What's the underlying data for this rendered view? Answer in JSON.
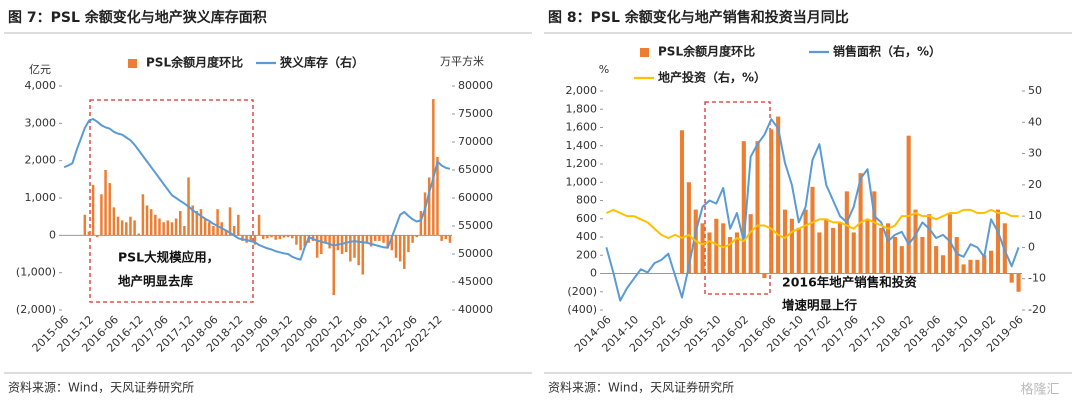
{
  "chart_data": [
    {
      "type": "combo",
      "title": "图 7：PSL 余额变化与地产狭义库存面积",
      "source": "资料来源：Wind，天风证券研究所",
      "ylabel": "亿元",
      "y2label": "万平方米",
      "annotations": [
        "PSL大规模应用，",
        "地产明显去库"
      ],
      "categories": [
        "2015-06",
        null,
        null,
        null,
        null,
        null,
        "2015-12",
        null,
        null,
        null,
        null,
        null,
        "2016-06",
        null,
        null,
        null,
        null,
        null,
        "2016-12",
        null,
        null,
        null,
        null,
        null,
        "2017-06",
        null,
        null,
        null,
        null,
        null,
        "2017-12",
        null,
        null,
        null,
        null,
        null,
        "2018-06",
        null,
        null,
        null,
        null,
        null,
        "2018-12",
        null,
        null,
        null,
        null,
        null,
        "2019-06",
        null,
        null,
        null,
        null,
        null,
        "2019-12",
        null,
        null,
        null,
        null,
        null,
        "2020-06",
        null,
        null,
        null,
        null,
        null,
        "2020-12",
        null,
        null,
        null,
        null,
        null,
        "2021-06",
        null,
        null,
        null,
        null,
        null,
        "2021-12",
        null,
        null,
        null,
        null,
        null,
        "2022-06",
        null,
        null,
        null,
        null,
        null,
        "2022-12",
        null,
        null,
        null
      ],
      "ylim": [
        -2000,
        4000
      ],
      "yticks": [
        {
          "value": -2000,
          "label": "(2,000)"
        },
        {
          "value": -1000,
          "label": "(1,000)"
        },
        0,
        {
          "value": 1000,
          "label": "1,000"
        },
        {
          "value": 2000,
          "label": "2,000"
        },
        {
          "value": 3000,
          "label": "3,000"
        },
        {
          "value": 4000,
          "label": "4,000"
        }
      ],
      "y2lim": [
        40000,
        80000
      ],
      "y2ticks": [
        40000,
        45000,
        50000,
        55000,
        60000,
        65000,
        70000,
        75000,
        80000
      ],
      "series": [
        {
          "name": "PSL余额月度环比",
          "type": "bar",
          "color": "#ed7d31",
          "values": [
            null,
            null,
            null,
            null,
            null,
            550,
            100,
            1350,
            -50,
            1100,
            1750,
            1400,
            750,
            500,
            400,
            350,
            500,
            400,
            50,
            1100,
            800,
            700,
            550,
            450,
            350,
            400,
            350,
            450,
            650,
            250,
            1550,
            800,
            650,
            700,
            450,
            350,
            250,
            700,
            350,
            150,
            750,
            250,
            550,
            -150,
            -200,
            -150,
            -250,
            550,
            -100,
            -80,
            -50,
            -120,
            -100,
            -60,
            -50,
            -80,
            -250,
            -400,
            -300,
            -200,
            -150,
            -600,
            -500,
            -200,
            -350,
            -1600,
            -400,
            -500,
            -450,
            -700,
            -600,
            -800,
            -1050,
            -200,
            -300,
            -150,
            -150,
            -200,
            -350,
            -400,
            -600,
            -700,
            -900,
            -450,
            -200,
            -50,
            650,
            1150,
            1550,
            3650,
            2100,
            -150,
            -100,
            -200
          ]
        },
        {
          "name": "狭义库存（右）",
          "type": "line",
          "axis": "y2",
          "color": "#5b9bd5",
          "values": [
            65500,
            65800,
            66200,
            68500,
            70500,
            72500,
            73800,
            74100,
            73600,
            73000,
            72600,
            72400,
            71800,
            71500,
            71300,
            70800,
            70300,
            69500,
            68500,
            67500,
            66500,
            65500,
            64500,
            63500,
            62500,
            61500,
            60500,
            60000,
            59500,
            59000,
            58500,
            57800,
            57300,
            56800,
            56300,
            55900,
            55400,
            55000,
            54600,
            54200,
            53800,
            53300,
            52800,
            52600,
            52500,
            52300,
            52100,
            51600,
            51300,
            51000,
            50800,
            50500,
            50300,
            50100,
            50000,
            49500,
            49200,
            49000,
            51200,
            53000,
            52700,
            52400,
            52200,
            52000,
            51800,
            51500,
            51700,
            51800,
            52000,
            52200,
            52300,
            52200,
            52100,
            52000,
            51800,
            51600,
            51400,
            51200,
            51100,
            53000,
            55000,
            57000,
            57500,
            56800,
            56200,
            55800,
            56000,
            58000,
            61000,
            63500,
            66500,
            65800,
            65400,
            65200
          ]
        }
      ]
    },
    {
      "type": "combo",
      "title": "图 8：PSL 余额变化与地产销售和投资当月同比",
      "source": "资料来源：Wind，天风证券研究所",
      "ylabel": "%",
      "annotations": [
        "2016年地产销售和投资",
        "增速明显上行"
      ],
      "categories": [
        "2014-06",
        null,
        null,
        null,
        "2014-10",
        null,
        null,
        null,
        "2015-02",
        null,
        null,
        null,
        "2015-06",
        null,
        null,
        null,
        "2015-10",
        null,
        null,
        null,
        "2016-02",
        null,
        null,
        null,
        "2016-06",
        null,
        null,
        null,
        "2016-10",
        null,
        null,
        null,
        "2017-02",
        null,
        null,
        null,
        "2017-06",
        null,
        null,
        null,
        "2017-10",
        null,
        null,
        null,
        "2018-02",
        null,
        null,
        null,
        "2018-06",
        null,
        null,
        null,
        "2018-10",
        null,
        null,
        null,
        "2019-02",
        null,
        null,
        null,
        "2019-06"
      ],
      "ylim": [
        -400,
        2000
      ],
      "yticks": [
        {
          "value": -400,
          "label": "(400)"
        },
        {
          "value": -200,
          "label": "(200)"
        },
        0,
        200,
        400,
        600,
        800,
        {
          "value": 1000,
          "label": "1,000"
        },
        {
          "value": 1200,
          "label": "1,200"
        },
        {
          "value": 1400,
          "label": "1,400"
        },
        {
          "value": 1600,
          "label": "1,600"
        },
        {
          "value": 1800,
          "label": "1,800"
        },
        {
          "value": 2000,
          "label": "2,000"
        }
      ],
      "y2lim": [
        -20,
        50
      ],
      "y2ticks": [
        -20,
        -10,
        0,
        10,
        20,
        30,
        40,
        50
      ],
      "series": [
        {
          "name": "PSL余额月度环比",
          "type": "bar",
          "color": "#ed7d31",
          "values": [
            null,
            null,
            null,
            null,
            null,
            null,
            null,
            null,
            null,
            null,
            null,
            1570,
            1000,
            700,
            550,
            450,
            600,
            550,
            400,
            450,
            1450,
            650,
            1450,
            -50,
            1580,
            1720,
            700,
            600,
            500,
            700,
            950,
            450,
            600,
            500,
            550,
            900,
            450,
            1100,
            600,
            900,
            500,
            550,
            400,
            300,
            1510,
            700,
            400,
            650,
            300,
            200,
            650,
            400,
            100,
            150,
            150,
            200,
            250,
            700,
            550,
            -100,
            -200
          ]
        },
        {
          "name": "销售面积（右，%）",
          "type": "line",
          "axis": "y2",
          "color": "#5b9bd5",
          "values": [
            0,
            -8,
            -17,
            -13,
            -10,
            -7,
            -8,
            -5,
            -4,
            -2,
            -9,
            -16,
            -6,
            5,
            13,
            15,
            14,
            19,
            6,
            11,
            2,
            29,
            33,
            36,
            41,
            38,
            27,
            20,
            8,
            13,
            28,
            33,
            20,
            15,
            10,
            8,
            13,
            22,
            25,
            10,
            8,
            2,
            4,
            5,
            1,
            4,
            8,
            6,
            3,
            4,
            2,
            -2,
            -3,
            1,
            0,
            -3,
            9,
            5,
            -1,
            -6,
            0
          ]
        },
        {
          "name": "地产投资（右，%）",
          "type": "line",
          "axis": "y2",
          "color": "#ffc000",
          "values": [
            11,
            12,
            11,
            10,
            10,
            9,
            8,
            6,
            4,
            3,
            4,
            3,
            4,
            2,
            1,
            2,
            1,
            0,
            1,
            3,
            2,
            5,
            7,
            7,
            6,
            4,
            3,
            5,
            6,
            7,
            8,
            9,
            9,
            8,
            8,
            7,
            6,
            8,
            9,
            8,
            7,
            6,
            7,
            10,
            10,
            11,
            10,
            10,
            9,
            10,
            11,
            11,
            12,
            12,
            11,
            11,
            12,
            11,
            11,
            10,
            10
          ]
        }
      ]
    }
  ],
  "watermark": "格隆汇"
}
